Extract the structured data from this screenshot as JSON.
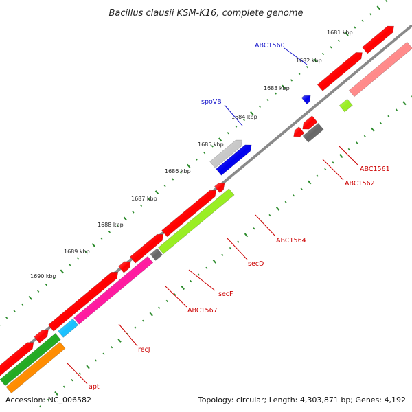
{
  "header": {
    "title": "Bacillus clausii KSM-K16, complete genome"
  },
  "footer": {
    "accession": "Accession: NC_006582",
    "summary": "Topology: circular; Length: 4,303,871 bp; Genes: 4,192"
  },
  "ruler": [
    "1681 kbp",
    "1682 kbp",
    "1683 kbp",
    "1684 kbp",
    "1685 kbp",
    "1686 kbp",
    "1687 kbp",
    "1688 kbp",
    "1689 kbp",
    "1690 kbp"
  ],
  "gene_labels": {
    "abc1560": "ABC1560",
    "spovb": "spoVB",
    "abc1561": "ABC1561",
    "abc1562": "ABC1562",
    "abc1564": "ABC1564",
    "secd": "secD",
    "secf": "secF",
    "abc1567": "ABC1567",
    "recj": "recJ",
    "apt": "apt"
  },
  "colors": {
    "cds_red": "#ff0000",
    "cds_pink": "#ff8a8a",
    "cds_magenta": "#ff1aa0",
    "cds_blue": "#0000ee",
    "cds_cyan": "#18c0ff",
    "cds_green": "#99ee22",
    "cds_darkgreen": "#22aa22",
    "cds_orange": "#ff8c00",
    "cds_gray": "#666666",
    "cds_lightgray": "#c8c8c8",
    "backbone": "#888888",
    "tick_green": "#2a8a2a",
    "label_red": "#cc0000",
    "label_blue": "#1a1acc"
  }
}
